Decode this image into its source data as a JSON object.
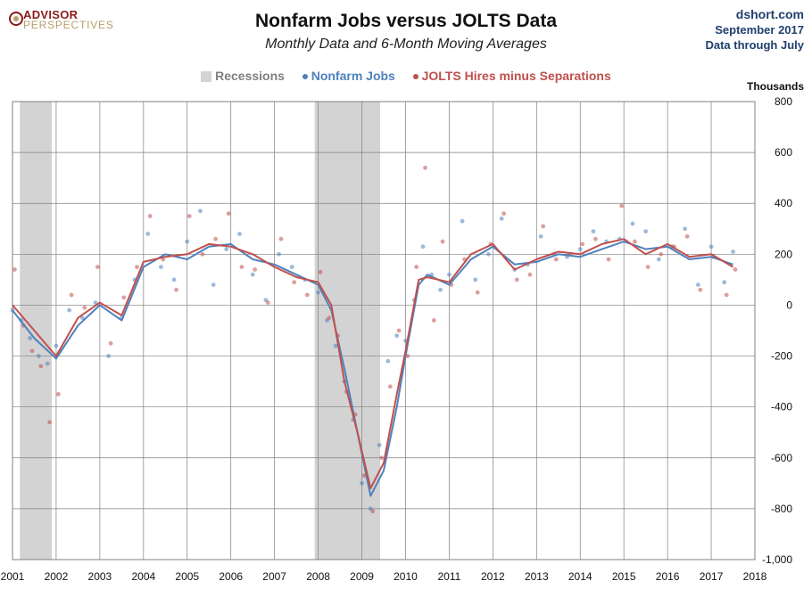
{
  "header": {
    "logo_line1": "ADVISOR",
    "logo_line2": "PERSPECTIVES",
    "title": "Nonfarm Jobs versus JOLTS Data",
    "subtitle": "Monthly Data and 6-Month Moving Averages",
    "source_site": "dshort.com",
    "source_date": "September 2017",
    "source_through": "Data through July"
  },
  "colors": {
    "recession": "#d3d3d3",
    "nonfarm": "#4f81bd",
    "jolts": "#c0504d",
    "grid": "#7f7f7f",
    "title": "#111111",
    "source": "#1f3f6e",
    "logo": "#8b1a1a"
  },
  "chart_data": {
    "type": "line",
    "title": "Nonfarm Jobs versus JOLTS Data",
    "subtitle": "Monthly Data and 6-Month Moving Averages",
    "ylabel": "Thousands",
    "ylim": [
      -1000,
      800
    ],
    "yticks": [
      800,
      600,
      400,
      200,
      0,
      -200,
      -400,
      -600,
      -800,
      -1000
    ],
    "ytick_labels": [
      "800",
      "600",
      "400",
      "200",
      "0",
      "-200",
      "-400",
      "-600",
      "-800",
      "-1,000"
    ],
    "xlim": [
      2001.0,
      2018.0
    ],
    "xticks": [
      2001,
      2002,
      2003,
      2004,
      2005,
      2006,
      2007,
      2008,
      2009,
      2010,
      2011,
      2012,
      2013,
      2014,
      2015,
      2016,
      2017,
      2018
    ],
    "xtick_labels": [
      "2001",
      "2002",
      "2003",
      "2004",
      "2005",
      "2006",
      "2007",
      "2008",
      "2009",
      "2010",
      "2011",
      "2012",
      "2013",
      "2014",
      "2015",
      "2016",
      "2017",
      "2018"
    ],
    "grid": true,
    "legend_position": "top-center",
    "legend": [
      "Recessions",
      "Nonfarm Jobs",
      "JOLTS Hires minus Separations"
    ],
    "recessions": [
      {
        "start": 2001.17,
        "end": 2001.9
      },
      {
        "start": 2007.92,
        "end": 2009.42
      }
    ],
    "series": [
      {
        "name": "Nonfarm Jobs",
        "x": [
          2001.0,
          2001.5,
          2002.0,
          2002.5,
          2003.0,
          2003.5,
          2004.0,
          2004.5,
          2005.0,
          2005.5,
          2006.0,
          2006.5,
          2007.0,
          2007.5,
          2008.0,
          2008.3,
          2008.6,
          2008.9,
          2009.2,
          2009.5,
          2009.8,
          2010.0,
          2010.3,
          2010.5,
          2011.0,
          2011.5,
          2012.0,
          2012.5,
          2013.0,
          2013.5,
          2014.0,
          2014.5,
          2015.0,
          2015.5,
          2016.0,
          2016.5,
          2017.0,
          2017.5
        ],
        "values": [
          -20,
          -130,
          -210,
          -80,
          0,
          -60,
          150,
          200,
          180,
          230,
          240,
          180,
          160,
          120,
          80,
          -20,
          -250,
          -500,
          -750,
          -650,
          -400,
          -200,
          80,
          120,
          80,
          180,
          230,
          160,
          170,
          200,
          190,
          220,
          250,
          220,
          230,
          180,
          190,
          160
        ]
      },
      {
        "name": "JOLTS Hires minus Separations",
        "x": [
          2001.0,
          2001.5,
          2002.0,
          2002.5,
          2003.0,
          2003.5,
          2004.0,
          2004.5,
          2005.0,
          2005.5,
          2006.0,
          2006.5,
          2007.0,
          2007.5,
          2008.0,
          2008.3,
          2008.6,
          2008.9,
          2009.2,
          2009.5,
          2009.8,
          2010.0,
          2010.3,
          2010.5,
          2011.0,
          2011.5,
          2012.0,
          2012.5,
          2013.0,
          2013.5,
          2014.0,
          2014.5,
          2015.0,
          2015.5,
          2016.0,
          2016.5,
          2017.0,
          2017.5
        ],
        "values": [
          0,
          -100,
          -200,
          -50,
          10,
          -40,
          170,
          190,
          200,
          240,
          230,
          200,
          150,
          110,
          90,
          0,
          -300,
          -500,
          -720,
          -620,
          -350,
          -180,
          100,
          110,
          90,
          200,
          240,
          140,
          180,
          210,
          200,
          240,
          260,
          200,
          240,
          190,
          200,
          150
        ]
      }
    ],
    "scatter_series": [
      {
        "name": "Nonfarm Jobs",
        "x": [
          2001.0,
          2001.2,
          2001.4,
          2001.6,
          2001.8,
          2002.0,
          2002.3,
          2002.6,
          2002.9,
          2003.2,
          2003.5,
          2003.8,
          2004.1,
          2004.4,
          2004.7,
          2005.0,
          2005.3,
          2005.6,
          2005.9,
          2006.2,
          2006.5,
          2006.8,
          2007.1,
          2007.4,
          2007.7,
          2008.0,
          2008.2,
          2008.4,
          2008.6,
          2008.8,
          2009.0,
          2009.2,
          2009.4,
          2009.6,
          2009.8,
          2010.0,
          2010.2,
          2010.4,
          2010.6,
          2010.8,
          2011.0,
          2011.3,
          2011.6,
          2011.9,
          2012.2,
          2012.5,
          2012.8,
          2013.1,
          2013.4,
          2013.7,
          2014.0,
          2014.3,
          2014.6,
          2014.9,
          2015.2,
          2015.5,
          2015.8,
          2016.1,
          2016.4,
          2016.7,
          2017.0,
          2017.3,
          2017.5
        ],
        "values": [
          -20,
          -60,
          -130,
          -200,
          -230,
          -160,
          -20,
          -50,
          10,
          -200,
          -50,
          100,
          280,
          150,
          100,
          250,
          370,
          80,
          220,
          280,
          120,
          20,
          200,
          150,
          100,
          50,
          -60,
          -160,
          -300,
          -450,
          -700,
          -800,
          -550,
          -220,
          -120,
          -140,
          20,
          230,
          120,
          60,
          120,
          330,
          100,
          200,
          340,
          140,
          160,
          270,
          200,
          190,
          220,
          290,
          250,
          260,
          320,
          290,
          180,
          230,
          300,
          80,
          230,
          90,
          210
        ]
      },
      {
        "name": "JOLTS Hires minus Separations",
        "x": [
          2001.05,
          2001.25,
          2001.45,
          2001.65,
          2001.85,
          2002.05,
          2002.35,
          2002.65,
          2002.95,
          2003.25,
          2003.55,
          2003.85,
          2004.15,
          2004.45,
          2004.75,
          2005.05,
          2005.35,
          2005.65,
          2005.95,
          2006.25,
          2006.55,
          2006.85,
          2007.15,
          2007.45,
          2007.75,
          2008.05,
          2008.25,
          2008.45,
          2008.65,
          2008.85,
          2009.05,
          2009.25,
          2009.45,
          2009.65,
          2009.85,
          2010.05,
          2010.25,
          2010.45,
          2010.65,
          2010.85,
          2011.05,
          2011.35,
          2011.65,
          2011.95,
          2012.25,
          2012.55,
          2012.85,
          2013.15,
          2013.45,
          2013.75,
          2014.05,
          2014.35,
          2014.65,
          2014.95,
          2015.25,
          2015.55,
          2015.85,
          2016.15,
          2016.45,
          2016.75,
          2017.05,
          2017.35,
          2017.55
        ],
        "values": [
          140,
          -80,
          -180,
          -240,
          -460,
          -350,
          40,
          -10,
          150,
          -150,
          30,
          150,
          350,
          180,
          60,
          350,
          200,
          260,
          360,
          150,
          140,
          10,
          260,
          90,
          40,
          130,
          -50,
          -120,
          -340,
          -430,
          -670,
          -810,
          -600,
          -320,
          -100,
          -200,
          150,
          540,
          -60,
          250,
          80,
          180,
          50,
          240,
          360,
          100,
          120,
          310,
          180,
          200,
          240,
          260,
          180,
          390,
          250,
          150,
          200,
          230,
          270,
          60,
          190,
          40,
          140
        ]
      }
    ]
  }
}
